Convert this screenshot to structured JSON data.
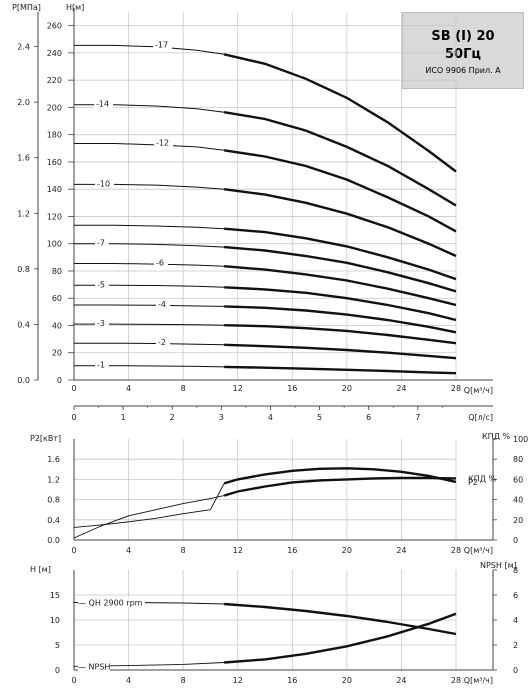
{
  "header": {
    "model": "SB (I) 20",
    "frequency": "50Гц",
    "standard": "ИСО 9906 Прил. А"
  },
  "chart_data": [
    {
      "type": "line",
      "title": "",
      "ylabel": "H[м]",
      "ylabel_secondary": "P[МПа]",
      "xlabel": "Q[м³/ч]",
      "xlabel_secondary": "Q[л/с]",
      "xlim": [
        0,
        28
      ],
      "ylim": [
        0,
        270
      ],
      "x_ticks": [
        0,
        4,
        8,
        12,
        16,
        20,
        24,
        28
      ],
      "y_ticks": [
        0,
        20,
        40,
        60,
        80,
        100,
        120,
        140,
        160,
        180,
        200,
        220,
        240,
        260
      ],
      "y2_ticks": [
        0.0,
        0.4,
        0.8,
        1.2,
        1.6,
        2.0,
        2.4
      ],
      "y2_tick_labels": [
        "0.0",
        "0.4",
        "0.8",
        "1.2",
        "1.6",
        "2.0",
        "2.4"
      ],
      "x2_ticks": [
        0,
        1,
        2,
        3,
        4,
        5,
        6,
        7
      ],
      "grid": true,
      "series": [
        {
          "name": "-1",
          "x": [
            0,
            3,
            6,
            9,
            11,
            14,
            17,
            20,
            23,
            26,
            28
          ],
          "y": [
            10.5,
            10.5,
            10.3,
            10,
            9.6,
            9,
            8.3,
            7.5,
            6.6,
            5.6,
            5
          ]
        },
        {
          "name": "-2",
          "x": [
            0,
            3,
            6,
            9,
            11,
            14,
            17,
            20,
            23,
            26,
            28
          ],
          "y": [
            27,
            27,
            26.8,
            26.3,
            25.8,
            24.8,
            23.6,
            22,
            20,
            17.7,
            16
          ]
        },
        {
          "name": "-3",
          "x": [
            0,
            3,
            6,
            9,
            11,
            14,
            17,
            20,
            23,
            26,
            28
          ],
          "y": [
            41,
            41,
            40.8,
            40.5,
            40.2,
            39.5,
            38,
            36,
            33,
            29.5,
            27
          ]
        },
        {
          "name": "-4",
          "x": [
            0,
            3,
            6,
            9,
            11,
            14,
            17,
            20,
            23,
            26,
            28
          ],
          "y": [
            55,
            55,
            54.8,
            54.3,
            54,
            53,
            51,
            48,
            44,
            39,
            35
          ]
        },
        {
          "name": "-5",
          "x": [
            0,
            3,
            6,
            9,
            11,
            14,
            17,
            20,
            23,
            26,
            28
          ],
          "y": [
            69.5,
            69.5,
            69.3,
            68.8,
            68,
            66.5,
            64,
            60,
            55,
            49,
            44
          ]
        },
        {
          "name": "-6",
          "x": [
            0,
            3,
            6,
            9,
            11,
            14,
            17,
            20,
            23,
            26,
            28
          ],
          "y": [
            85.5,
            85.5,
            85,
            84.3,
            83.5,
            81,
            77.5,
            73,
            67,
            60,
            55
          ]
        },
        {
          "name": "-7",
          "x": [
            0,
            3,
            6,
            9,
            11,
            14,
            17,
            20,
            23,
            26,
            28
          ],
          "y": [
            100,
            100,
            99.5,
            98.5,
            97.5,
            95,
            91,
            86,
            79,
            71,
            65
          ]
        },
        {
          "name": "",
          "x": [
            0,
            3,
            6,
            9,
            11,
            14,
            17,
            20,
            23,
            26,
            28
          ],
          "y": [
            113.5,
            113.5,
            113,
            112,
            111,
            108.5,
            104,
            98,
            90,
            81,
            74
          ]
        },
        {
          "name": "-10",
          "x": [
            0,
            3,
            6,
            9,
            11,
            14,
            17,
            20,
            23,
            26,
            28
          ],
          "y": [
            143.5,
            143.5,
            143,
            141.5,
            140,
            136,
            130,
            122,
            112,
            100,
            91
          ]
        },
        {
          "name": "-12",
          "x": [
            0,
            3,
            6,
            9,
            11,
            14,
            17,
            20,
            23,
            26,
            28
          ],
          "y": [
            173.5,
            173.5,
            172.5,
            171,
            168.5,
            164,
            157,
            147,
            134,
            120,
            109
          ]
        },
        {
          "name": "-14",
          "x": [
            0,
            3,
            6,
            9,
            11,
            14,
            17,
            20,
            23,
            26,
            28
          ],
          "y": [
            202,
            202,
            201,
            199,
            196.5,
            191.5,
            183,
            171,
            157,
            140,
            128
          ]
        },
        {
          "name": "-17",
          "x": [
            0,
            3,
            6,
            9,
            11,
            14,
            17,
            20,
            23,
            26,
            28
          ],
          "y": [
            245.5,
            245.5,
            244.5,
            242,
            239,
            232,
            221,
            207,
            189,
            168,
            153
          ]
        }
      ]
    },
    {
      "type": "line",
      "title": "",
      "ylabel": "P2[кВт]",
      "ylabel_secondary": "КПД %",
      "xlabel": "Q[м³/ч]",
      "xlim": [
        0,
        28
      ],
      "ylim": [
        0,
        2
      ],
      "x_ticks": [
        0,
        4,
        8,
        12,
        16,
        20,
        24,
        28
      ],
      "y_ticks": [
        0.0,
        0.4,
        0.8,
        1.2,
        1.6
      ],
      "y_tick_labels": [
        "0.0",
        "0.4",
        "0.8",
        "1.2",
        "1.6"
      ],
      "y2_ticks": [
        0,
        20,
        40,
        60,
        80,
        100
      ],
      "grid": true,
      "series": [
        {
          "name": "P2",
          "axis": "left",
          "x": [
            0,
            2,
            4,
            6,
            8,
            10,
            11,
            12,
            14,
            16,
            18,
            20,
            22,
            24,
            26,
            28
          ],
          "y": [
            0.25,
            0.3,
            0.36,
            0.43,
            0.52,
            0.6,
            1.12,
            1.2,
            1.3,
            1.37,
            1.41,
            1.42,
            1.4,
            1.35,
            1.27,
            1.15
          ]
        },
        {
          "name": "КПД %",
          "axis": "right",
          "x": [
            0,
            2,
            4,
            6,
            8,
            10,
            11,
            12,
            14,
            16,
            18,
            20,
            22,
            24,
            26,
            28
          ],
          "y": [
            2,
            14,
            24,
            30,
            36,
            41,
            44,
            48,
            53,
            57,
            59,
            60,
            61,
            61.5,
            61.5,
            61
          ]
        }
      ]
    },
    {
      "type": "line",
      "title": "",
      "ylabel": "H [м]",
      "ylabel_secondary": "NPSH [м]",
      "xlabel": "Q[м³/ч]",
      "xlim": [
        0,
        28
      ],
      "ylim": [
        0,
        20
      ],
      "x_ticks": [
        0,
        4,
        8,
        12,
        16,
        20,
        24,
        28
      ],
      "y_ticks": [
        0,
        5,
        10,
        15
      ],
      "y2_ticks": [
        0,
        2,
        4,
        6,
        8
      ],
      "grid": true,
      "series": [
        {
          "name": "QH 2900 rpm",
          "axis": "left",
          "x": [
            0,
            4,
            8,
            11,
            14,
            17,
            20,
            23,
            26,
            28
          ],
          "y": [
            13.5,
            13.5,
            13.4,
            13.2,
            12.6,
            11.8,
            10.8,
            9.6,
            8.2,
            7.2
          ]
        },
        {
          "name": "NPSH",
          "axis": "right",
          "x": [
            0,
            4,
            8,
            11,
            14,
            17,
            20,
            23,
            26,
            28
          ],
          "y": [
            0.3,
            0.35,
            0.45,
            0.6,
            0.85,
            1.3,
            1.9,
            2.7,
            3.7,
            4.5
          ]
        }
      ]
    }
  ]
}
